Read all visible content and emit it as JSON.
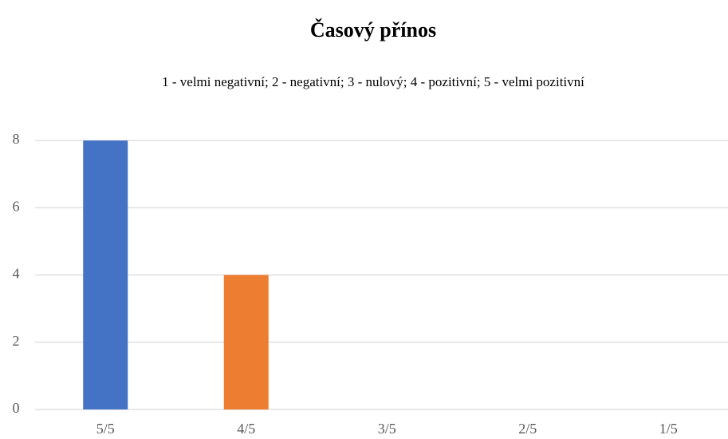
{
  "chart_data": {
    "type": "bar",
    "title": "Časový přínos",
    "subtitle": "1 - velmi negativní; 2 - negativní; 3 - nulový; 4 - pozitivní; 5 - velmi pozitivní",
    "categories": [
      "5/5",
      "4/5",
      "3/5",
      "2/5",
      "1/5"
    ],
    "values": [
      8,
      4,
      0,
      0,
      0
    ],
    "colors": [
      "#4472c4",
      "#ed7d31",
      "#a5a5a5",
      "#ffc000",
      "#5b9bd5"
    ],
    "ylim": [
      0,
      8
    ],
    "yticks": [
      0,
      2,
      4,
      6,
      8
    ],
    "grid": true
  }
}
